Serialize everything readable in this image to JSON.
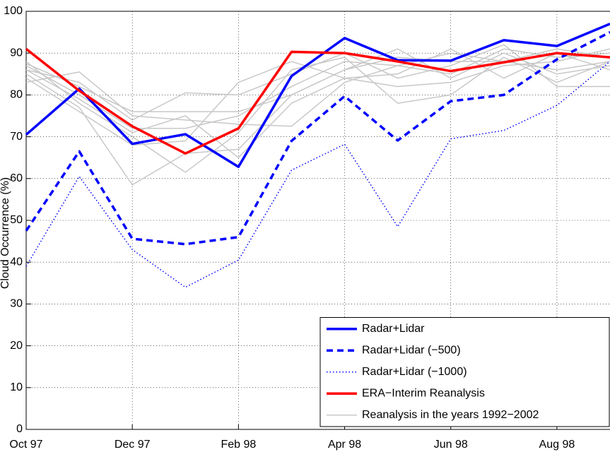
{
  "chart_data": {
    "type": "line",
    "y_label": "Cloud Occurrence (%)",
    "x": [
      "1997-10",
      "1997-11",
      "1997-12",
      "1998-01",
      "1998-02",
      "1998-03",
      "1998-04",
      "1998-05",
      "1998-06",
      "1998-07",
      "1998-08",
      "1998-09"
    ],
    "xlim": [
      "1997-10",
      "1998-09"
    ],
    "xticks": [
      {
        "value": "1997-10",
        "label": "Oct 97"
      },
      {
        "value": "1997-12",
        "label": "Dec 97"
      },
      {
        "value": "1998-02",
        "label": "Feb 98"
      },
      {
        "value": "1998-04",
        "label": "Apr 98"
      },
      {
        "value": "1998-06",
        "label": "Jun 98"
      },
      {
        "value": "1998-08",
        "label": "Aug 98"
      }
    ],
    "ylim": [
      0,
      100
    ],
    "yticks": [
      0,
      10,
      20,
      30,
      40,
      50,
      60,
      70,
      80,
      90,
      100
    ],
    "grid": true,
    "legend": "lower right",
    "series": [
      {
        "name": "Radar+Lidar",
        "color": "#0000ff",
        "style": "solid",
        "width": 3.5,
        "values": [
          70.5,
          81.5,
          68.3,
          70.6,
          62.8,
          84.5,
          93.6,
          88.3,
          88.2,
          93.1,
          91.7,
          97
        ]
      },
      {
        "name": "Radar+Lidar (−500)",
        "color": "#0000ff",
        "style": "dashed",
        "width": 3.5,
        "values": [
          47.5,
          66.5,
          45.6,
          44.3,
          46,
          69,
          79.7,
          69.1,
          78.5,
          80,
          88.5,
          95
        ]
      },
      {
        "name": "Radar+Lidar (−1000)",
        "color": "#0000ff",
        "style": "dotted",
        "width": 1.5,
        "values": [
          39,
          60.5,
          43,
          34,
          40.5,
          62,
          68.2,
          48.5,
          69.5,
          71.5,
          77.5,
          88
        ]
      },
      {
        "name": "ERA−Interim Reanalysis",
        "color": "#ff0000",
        "style": "solid",
        "width": 3.5,
        "values": [
          91,
          81,
          72.5,
          66,
          72,
          90.3,
          90,
          88,
          85.7,
          87.8,
          90,
          89
        ]
      },
      {
        "name": "Reanalysis in the years 1992−2002",
        "color": "#c8c8c8",
        "style": "solid",
        "width": 1.5,
        "lines": [
          [
            87,
            80,
            72,
            72,
            75,
            82,
            88,
            87,
            90,
            88,
            86,
            88
          ],
          [
            85,
            77,
            58.5,
            66,
            67,
            80,
            86,
            91,
            84,
            90,
            85,
            87
          ],
          [
            83,
            85.5,
            75,
            74,
            73,
            72.5,
            83,
            87,
            85,
            91,
            89,
            90
          ],
          [
            88,
            78,
            70,
            61.5,
            71,
            86,
            89,
            78,
            80,
            89,
            83,
            88
          ],
          [
            86,
            83,
            74,
            80.5,
            80,
            85,
            90,
            84,
            87,
            92,
            82,
            82
          ],
          [
            84,
            76,
            68,
            69,
            83,
            88,
            84,
            85,
            91,
            84,
            90,
            86
          ],
          [
            87.5,
            82,
            76,
            76,
            76,
            80,
            86,
            89,
            88,
            88,
            91,
            89
          ],
          [
            86,
            79,
            71,
            75,
            65,
            78,
            84,
            82,
            83,
            87,
            88,
            91
          ]
        ]
      }
    ]
  }
}
